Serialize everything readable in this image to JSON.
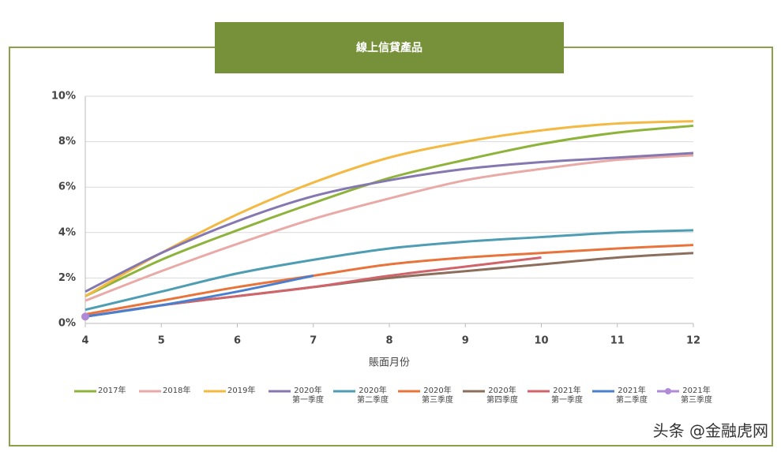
{
  "chart_data": {
    "type": "line",
    "title": "線上信貸產品",
    "x_label": "賬面月份",
    "x": [
      4,
      5,
      6,
      7,
      8,
      9,
      10,
      11,
      12
    ],
    "xlim": [
      4,
      12
    ],
    "xticks": [
      4,
      5,
      6,
      7,
      8,
      9,
      10,
      11,
      12
    ],
    "ylim": [
      0,
      10
    ],
    "yticks": [
      {
        "value": 0,
        "label": "0%"
      },
      {
        "value": 2,
        "label": "2%"
      },
      {
        "value": 4,
        "label": "4%"
      },
      {
        "value": 6,
        "label": "6%"
      },
      {
        "value": 8,
        "label": "8%"
      },
      {
        "value": 10,
        "label": "10%"
      }
    ],
    "grid": true,
    "legend": "bottom",
    "series": [
      {
        "name": "2017年",
        "color": "#8db33a",
        "values": [
          1.2,
          2.8,
          4.1,
          5.3,
          6.4,
          7.2,
          7.9,
          8.4,
          8.7
        ]
      },
      {
        "name": "2018年",
        "color": "#e9aaa7",
        "values": [
          1.0,
          2.3,
          3.5,
          4.6,
          5.5,
          6.3,
          6.8,
          7.2,
          7.4
        ]
      },
      {
        "name": "2019年",
        "color": "#f4b942",
        "values": [
          1.2,
          3.1,
          4.8,
          6.2,
          7.3,
          8.0,
          8.5,
          8.8,
          8.9
        ]
      },
      {
        "name": "2020年\n第一季度",
        "color": "#8577b0",
        "values": [
          1.4,
          3.1,
          4.5,
          5.6,
          6.3,
          6.8,
          7.1,
          7.3,
          7.5
        ]
      },
      {
        "name": "2020年\n第二季度",
        "color": "#4e9db3",
        "values": [
          0.6,
          1.4,
          2.2,
          2.8,
          3.3,
          3.6,
          3.8,
          4.0,
          4.1
        ]
      },
      {
        "name": "2020年\n第三季度",
        "color": "#e8743b",
        "values": [
          0.4,
          1.0,
          1.6,
          2.1,
          2.6,
          2.9,
          3.1,
          3.3,
          3.45
        ]
      },
      {
        "name": "2020年\n第四季度",
        "color": "#8b6e5c",
        "values": [
          0.3,
          0.8,
          1.2,
          1.6,
          2.0,
          2.3,
          2.6,
          2.9,
          3.1
        ]
      },
      {
        "name": "2021年\n第一季度",
        "color": "#d0646b",
        "values": [
          0.3,
          0.8,
          1.2,
          1.6,
          2.1,
          2.5,
          2.9,
          null,
          null
        ]
      },
      {
        "name": "2021年\n第二季度",
        "color": "#4a7fd0",
        "values": [
          0.3,
          0.8,
          1.4,
          2.1,
          null,
          null,
          null,
          null,
          null
        ]
      },
      {
        "name": "2021年\n第三季度",
        "color": "#b08ad6",
        "marker": true,
        "values": [
          0.3,
          null,
          null,
          null,
          null,
          null,
          null,
          null,
          null
        ]
      }
    ],
    "watermark": "头条 @金融虎网"
  }
}
